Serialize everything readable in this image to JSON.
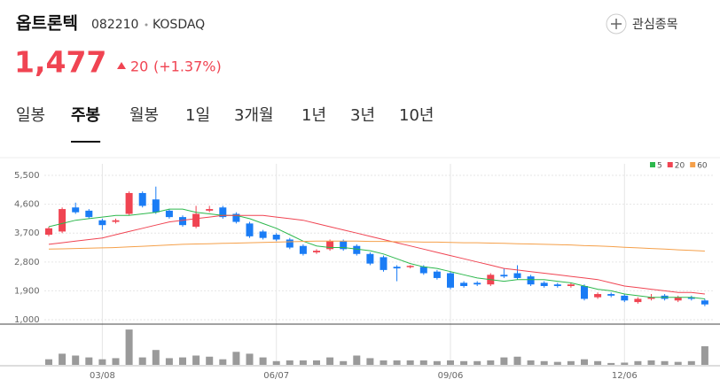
{
  "header": {
    "name": "옵트론텍",
    "code": "082210",
    "market": "KOSDAQ",
    "watch": "관심종목",
    "price": "1,477",
    "change": "20",
    "change_pct": "(+1.37%)"
  },
  "tabs": [
    "일봉",
    "주봉",
    "월봉",
    "1일",
    "3개월",
    "1년",
    "3년",
    "10년"
  ],
  "active_tab": 1,
  "chart_data": {
    "type": "candlestick",
    "categories": [
      null,
      null,
      null,
      null,
      "03/08",
      null,
      null,
      null,
      null,
      null,
      null,
      null,
      null,
      null,
      null,
      null,
      null,
      "06/07",
      null,
      null,
      null,
      null,
      null,
      null,
      null,
      null,
      null,
      null,
      null,
      null,
      "09/06",
      null,
      null,
      null,
      null,
      null,
      null,
      null,
      null,
      null,
      null,
      null,
      null,
      "12/06",
      null,
      null,
      null,
      null,
      null,
      null
    ],
    "open": [
      3650,
      3750,
      4500,
      4400,
      4100,
      4050,
      4300,
      4950,
      4750,
      4400,
      4200,
      3900,
      4400,
      4500,
      4300,
      4000,
      3750,
      3650,
      3500,
      3300,
      3100,
      3200,
      3450,
      3300,
      3050,
      2950,
      2650,
      2650,
      2650,
      2500,
      2450,
      2150,
      2150,
      2100,
      2400,
      2450,
      2350,
      2150,
      2100,
      2050,
      2050,
      1700,
      1800,
      1750,
      1550,
      1650,
      1750,
      1600,
      1700,
      1600
    ],
    "high": [
      3900,
      4500,
      4650,
      4450,
      4150,
      4150,
      5000,
      5000,
      5150,
      4450,
      4250,
      4550,
      4550,
      4550,
      4350,
      4050,
      3800,
      3700,
      3550,
      3350,
      3200,
      3500,
      3500,
      3350,
      3100,
      3000,
      2700,
      2700,
      2700,
      2550,
      2500,
      2200,
      2200,
      2450,
      2600,
      2700,
      2400,
      2200,
      2150,
      2150,
      2100,
      1850,
      1850,
      1800,
      1700,
      1800,
      1800,
      1750,
      1750,
      1650
    ],
    "low": [
      3600,
      3700,
      4300,
      4150,
      3800,
      4000,
      4250,
      4500,
      4300,
      4150,
      3900,
      3850,
      4350,
      4150,
      4000,
      3550,
      3500,
      3450,
      3200,
      3000,
      3050,
      3150,
      3150,
      3000,
      2700,
      2500,
      2200,
      2600,
      2400,
      2250,
      1950,
      2000,
      2050,
      2050,
      2300,
      2250,
      2050,
      2000,
      2000,
      2000,
      1600,
      1650,
      1700,
      1550,
      1500,
      1600,
      1600,
      1550,
      1600,
      1420
    ],
    "close": [
      3850,
      4450,
      4350,
      4200,
      3950,
      4100,
      4950,
      4550,
      4350,
      4200,
      3950,
      4300,
      4450,
      4200,
      4050,
      3600,
      3550,
      3500,
      3250,
      3050,
      3150,
      3450,
      3200,
      3050,
      2750,
      2550,
      2600,
      2680,
      2450,
      2300,
      2000,
      2050,
      2100,
      2400,
      2350,
      2300,
      2100,
      2050,
      2050,
      2100,
      1650,
      1800,
      1750,
      1600,
      1650,
      1700,
      1650,
      1700,
      1650,
      1477
    ],
    "up_color": "#f04452",
    "down_color": "#1a7cf5",
    "moving_averages": [
      {
        "name": "5",
        "color": "#2db84d",
        "values": [
          3900,
          4000,
          4100,
          4150,
          4200,
          4250,
          4250,
          4300,
          4350,
          4450,
          4450,
          4350,
          4300,
          4250,
          4250,
          4150,
          4000,
          3850,
          3650,
          3450,
          3300,
          3250,
          3250,
          3200,
          3150,
          3050,
          2900,
          2750,
          2650,
          2600,
          2500,
          2400,
          2300,
          2250,
          2200,
          2250,
          2250,
          2250,
          2200,
          2150,
          2050,
          1950,
          1900,
          1800,
          1750,
          1700,
          1700,
          1700,
          1700,
          1650
        ]
      },
      {
        "name": "20",
        "color": "#f04452",
        "values": [
          3350,
          3400,
          3450,
          3500,
          3550,
          3650,
          3750,
          3850,
          3950,
          4050,
          4100,
          4150,
          4200,
          4250,
          4250,
          4250,
          4250,
          4200,
          4150,
          4100,
          4000,
          3900,
          3800,
          3700,
          3600,
          3500,
          3400,
          3300,
          3200,
          3100,
          3000,
          2900,
          2800,
          2700,
          2600,
          2550,
          2500,
          2450,
          2400,
          2350,
          2300,
          2250,
          2150,
          2050,
          2000,
          1950,
          1900,
          1850,
          1850,
          1800
        ]
      },
      {
        "name": "60",
        "color": "#f5a04a",
        "values": [
          3200,
          3210,
          3220,
          3230,
          3240,
          3250,
          3270,
          3290,
          3310,
          3330,
          3350,
          3360,
          3370,
          3380,
          3390,
          3400,
          3410,
          3420,
          3430,
          3440,
          3450,
          3450,
          3450,
          3450,
          3440,
          3440,
          3430,
          3430,
          3420,
          3420,
          3410,
          3400,
          3400,
          3390,
          3380,
          3370,
          3360,
          3350,
          3340,
          3330,
          3310,
          3300,
          3280,
          3260,
          3240,
          3220,
          3200,
          3180,
          3160,
          3140
        ]
      }
    ],
    "volume": {
      "color": "#9a9a9a",
      "ylim": [
        0,
        100
      ],
      "values": [
        15,
        30,
        25,
        20,
        15,
        18,
        95,
        20,
        40,
        18,
        20,
        25,
        22,
        15,
        35,
        30,
        20,
        10,
        12,
        12,
        12,
        20,
        10,
        25,
        18,
        12,
        12,
        12,
        12,
        10,
        12,
        10,
        10,
        12,
        20,
        22,
        12,
        10,
        8,
        10,
        15,
        10,
        5,
        6,
        10,
        12,
        10,
        8,
        10,
        50
      ]
    },
    "ylim": [
      890,
      5860
    ],
    "yticks": [
      {
        "value": 5500,
        "label": "5,500"
      },
      {
        "value": 4600,
        "label": "4,600"
      },
      {
        "value": 3700,
        "label": "3,700"
      },
      {
        "value": 2800,
        "label": "2,800"
      },
      {
        "value": 1900,
        "label": "1,900"
      },
      {
        "value": 1000,
        "label": "1,000"
      }
    ],
    "grid": true
  }
}
